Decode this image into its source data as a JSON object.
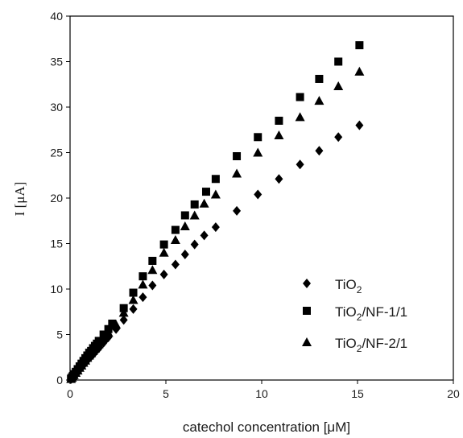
{
  "chart_data": {
    "type": "scatter",
    "title": "",
    "xlabel": "catechol concentration [μM]",
    "ylabel": "I [μA]",
    "xlim": [
      0,
      20
    ],
    "ylim": [
      0,
      40
    ],
    "xticks": [
      0,
      5,
      10,
      15,
      20
    ],
    "yticks": [
      0,
      5,
      10,
      15,
      20,
      25,
      30,
      35,
      40
    ],
    "grid": false,
    "legend_position": "bottom-right",
    "series": [
      {
        "name": "TiO2",
        "label_main": "TiO",
        "label_sub": "2",
        "label_rest": "",
        "marker": "diamond",
        "color": "#000000",
        "points": [
          [
            0.05,
            0.1
          ],
          [
            0.1,
            0.2
          ],
          [
            0.15,
            0.35
          ],
          [
            0.2,
            0.5
          ],
          [
            0.3,
            0.7
          ],
          [
            0.4,
            0.95
          ],
          [
            0.5,
            1.2
          ],
          [
            0.6,
            1.4
          ],
          [
            0.7,
            1.7
          ],
          [
            0.8,
            1.9
          ],
          [
            0.9,
            2.2
          ],
          [
            1.0,
            2.4
          ],
          [
            1.1,
            2.6
          ],
          [
            1.2,
            2.8
          ],
          [
            1.3,
            3.05
          ],
          [
            1.4,
            3.3
          ],
          [
            1.5,
            3.5
          ],
          [
            1.75,
            4.1
          ],
          [
            2.0,
            4.7
          ],
          [
            2.4,
            5.6
          ],
          [
            2.8,
            6.6
          ],
          [
            3.3,
            7.8
          ],
          [
            3.8,
            9.1
          ],
          [
            4.3,
            10.4
          ],
          [
            4.9,
            11.6
          ],
          [
            5.5,
            12.7
          ],
          [
            6.0,
            13.8
          ],
          [
            6.5,
            14.9
          ],
          [
            7.0,
            15.9
          ],
          [
            7.6,
            16.8
          ],
          [
            8.7,
            18.6
          ],
          [
            9.8,
            20.4
          ],
          [
            10.9,
            22.1
          ],
          [
            12.0,
            23.7
          ],
          [
            13.0,
            25.2
          ],
          [
            14.0,
            26.7
          ],
          [
            15.1,
            28.0
          ]
        ]
      },
      {
        "name": "TiO2/NF-1/1",
        "label_main": "TiO",
        "label_sub": "2",
        "label_rest": "/NF-1/1",
        "marker": "square",
        "color": "#000000",
        "points": [
          [
            0.05,
            0.15
          ],
          [
            0.1,
            0.3
          ],
          [
            0.15,
            0.45
          ],
          [
            0.2,
            0.65
          ],
          [
            0.3,
            0.9
          ],
          [
            0.4,
            1.2
          ],
          [
            0.5,
            1.5
          ],
          [
            0.6,
            1.8
          ],
          [
            0.7,
            2.1
          ],
          [
            0.8,
            2.4
          ],
          [
            0.9,
            2.7
          ],
          [
            1.0,
            3.0
          ],
          [
            1.1,
            3.2
          ],
          [
            1.2,
            3.5
          ],
          [
            1.3,
            3.75
          ],
          [
            1.4,
            4.0
          ],
          [
            1.5,
            4.3
          ],
          [
            1.75,
            5.0
          ],
          [
            2.0,
            5.6
          ],
          [
            2.2,
            6.2
          ],
          [
            2.8,
            7.9
          ],
          [
            3.3,
            9.6
          ],
          [
            3.8,
            11.4
          ],
          [
            4.3,
            13.1
          ],
          [
            4.9,
            14.9
          ],
          [
            5.5,
            16.5
          ],
          [
            6.0,
            18.1
          ],
          [
            6.5,
            19.3
          ],
          [
            7.1,
            20.7
          ],
          [
            7.6,
            22.1
          ],
          [
            8.7,
            24.6
          ],
          [
            9.8,
            26.7
          ],
          [
            10.9,
            28.5
          ],
          [
            12.0,
            31.1
          ],
          [
            13.0,
            33.1
          ],
          [
            14.0,
            35.0
          ],
          [
            15.1,
            36.8
          ]
        ]
      },
      {
        "name": "TiO2/NF-2/1",
        "label_main": "TiO",
        "label_sub": "2",
        "label_rest": "/NF-2/1",
        "marker": "triangle",
        "color": "#000000",
        "points": [
          [
            0.05,
            0.12
          ],
          [
            0.1,
            0.25
          ],
          [
            0.15,
            0.4
          ],
          [
            0.2,
            0.55
          ],
          [
            0.3,
            0.8
          ],
          [
            0.4,
            1.05
          ],
          [
            0.5,
            1.35
          ],
          [
            0.6,
            1.6
          ],
          [
            0.7,
            1.9
          ],
          [
            0.8,
            2.15
          ],
          [
            0.9,
            2.45
          ],
          [
            1.0,
            2.7
          ],
          [
            1.1,
            2.95
          ],
          [
            1.2,
            3.2
          ],
          [
            1.3,
            3.45
          ],
          [
            1.4,
            3.7
          ],
          [
            1.5,
            3.95
          ],
          [
            1.75,
            4.6
          ],
          [
            2.0,
            5.2
          ],
          [
            2.4,
            6.1
          ],
          [
            2.8,
            7.4
          ],
          [
            3.3,
            8.8
          ],
          [
            3.8,
            10.5
          ],
          [
            4.3,
            12.1
          ],
          [
            4.9,
            14.0
          ],
          [
            5.5,
            15.4
          ],
          [
            6.0,
            16.9
          ],
          [
            6.5,
            18.1
          ],
          [
            7.0,
            19.4
          ],
          [
            7.6,
            20.4
          ],
          [
            8.7,
            22.7
          ],
          [
            9.8,
            25.0
          ],
          [
            10.9,
            26.9
          ],
          [
            12.0,
            28.9
          ],
          [
            13.0,
            30.7
          ],
          [
            14.0,
            32.3
          ],
          [
            15.1,
            33.9
          ]
        ]
      }
    ]
  }
}
